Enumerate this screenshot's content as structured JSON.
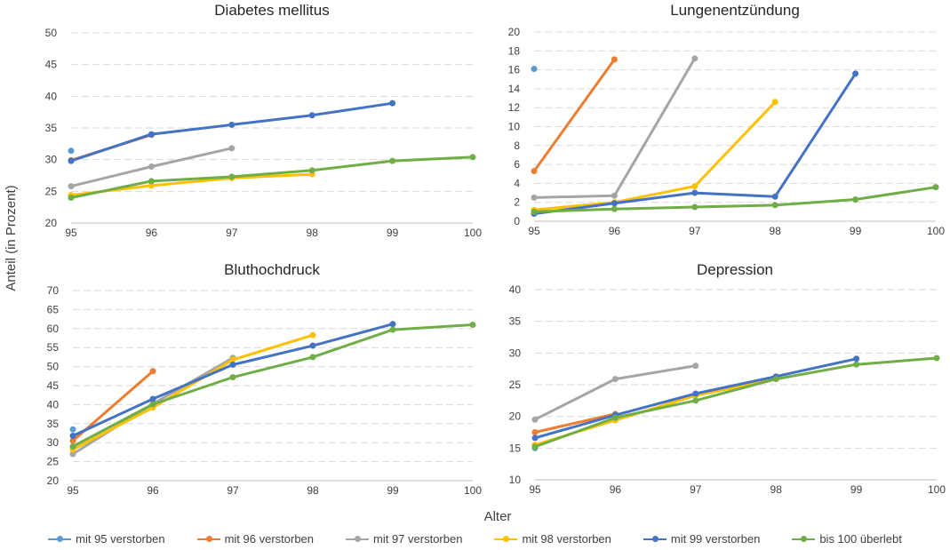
{
  "y_axis_label": "Anteil (in Prozent)",
  "x_axis_label": "Alter",
  "legend": [
    {
      "name": "mit 95 verstorben",
      "color": "#5B9BD5"
    },
    {
      "name": "mit 96 verstorben",
      "color": "#ED7D31"
    },
    {
      "name": "mit 97 verstorben",
      "color": "#A5A5A5"
    },
    {
      "name": "mit 98 verstorben",
      "color": "#FFC000"
    },
    {
      "name": "mit 99 verstorben",
      "color": "#4472C4"
    },
    {
      "name": "bis 100 überlebt",
      "color": "#70AD47"
    }
  ],
  "chart_data": [
    {
      "type": "line",
      "title": "Diabetes mellitus",
      "x": [
        95,
        96,
        97,
        98,
        99,
        100
      ],
      "x_tick_labels": [
        "95",
        "96",
        "97",
        "98",
        "99",
        "100"
      ],
      "ylim": [
        20,
        50
      ],
      "y_ticks": [
        20,
        25,
        30,
        35,
        40,
        45,
        50
      ],
      "grid": true,
      "series": [
        {
          "name": "mit 95 verstorben",
          "values": [
            31.4,
            null,
            null,
            null,
            null,
            null
          ]
        },
        {
          "name": "mit 96 verstorben",
          "values": [
            29.9,
            33.9,
            null,
            null,
            null,
            null
          ]
        },
        {
          "name": "mit 97 verstorben",
          "values": [
            25.8,
            28.9,
            31.8,
            null,
            null,
            null
          ]
        },
        {
          "name": "mit 98 verstorben",
          "values": [
            24.4,
            25.9,
            27.1,
            27.7,
            null,
            null
          ]
        },
        {
          "name": "mit 99 verstorben",
          "values": [
            29.8,
            34.0,
            35.5,
            37.0,
            38.9,
            null
          ]
        },
        {
          "name": "bis 100 überlebt",
          "values": [
            24.0,
            26.6,
            27.3,
            28.3,
            29.8,
            30.4
          ]
        }
      ]
    },
    {
      "type": "line",
      "title": "Lungenentzündung",
      "x": [
        95,
        96,
        97,
        98,
        99,
        100
      ],
      "x_tick_labels": [
        "95",
        "96",
        "97",
        "98",
        "99",
        "100"
      ],
      "ylim": [
        0,
        20
      ],
      "y_ticks": [
        0,
        2,
        4,
        6,
        8,
        10,
        12,
        14,
        16,
        18,
        20
      ],
      "grid": true,
      "series": [
        {
          "name": "mit 95 verstorben",
          "values": [
            16.1,
            null,
            null,
            null,
            null,
            null
          ]
        },
        {
          "name": "mit 96 verstorben",
          "values": [
            5.3,
            17.1,
            null,
            null,
            null,
            null
          ]
        },
        {
          "name": "mit 97 verstorben",
          "values": [
            2.5,
            2.7,
            17.2,
            null,
            null,
            null
          ]
        },
        {
          "name": "mit 98 verstorben",
          "values": [
            1.2,
            2.0,
            3.7,
            12.6,
            null,
            null
          ]
        },
        {
          "name": "mit 99 verstorben",
          "values": [
            0.8,
            1.9,
            3.0,
            2.6,
            15.6,
            null
          ]
        },
        {
          "name": "bis 100 überlebt",
          "values": [
            1.0,
            1.3,
            1.5,
            1.7,
            2.3,
            3.6
          ]
        }
      ]
    },
    {
      "type": "line",
      "title": "Bluthochdruck",
      "x": [
        95,
        96,
        97,
        98,
        99,
        100
      ],
      "x_tick_labels": [
        "95",
        "96",
        "97",
        "98",
        "99",
        "100"
      ],
      "ylim": [
        20,
        70
      ],
      "y_ticks": [
        20,
        25,
        30,
        35,
        40,
        45,
        50,
        55,
        60,
        65,
        70
      ],
      "grid": true,
      "series": [
        {
          "name": "mit 95 verstorben",
          "values": [
            33.5,
            null,
            null,
            null,
            null,
            null
          ]
        },
        {
          "name": "mit 96 verstorben",
          "values": [
            30.5,
            48.8,
            null,
            null,
            null,
            null
          ]
        },
        {
          "name": "mit 97 verstorben",
          "values": [
            27.0,
            40.2,
            52.3,
            null,
            null,
            null
          ]
        },
        {
          "name": "mit 98 verstorben",
          "values": [
            28.2,
            39.2,
            51.8,
            58.3,
            null,
            null
          ]
        },
        {
          "name": "mit 99 verstorben",
          "values": [
            31.8,
            41.5,
            50.5,
            55.5,
            61.2,
            null
          ]
        },
        {
          "name": "bis 100 überlebt",
          "values": [
            29.0,
            40.1,
            47.2,
            52.5,
            59.7,
            61.0
          ]
        }
      ]
    },
    {
      "type": "line",
      "title": "Depression",
      "x": [
        95,
        96,
        97,
        98,
        99,
        100
      ],
      "x_tick_labels": [
        "95",
        "96",
        "97",
        "98",
        "99",
        "100"
      ],
      "ylim": [
        10,
        40
      ],
      "y_ticks": [
        10,
        15,
        20,
        25,
        30,
        35,
        40
      ],
      "grid": true,
      "series": [
        {
          "name": "mit 95 verstorben",
          "values": [
            15.0,
            null,
            null,
            null,
            null,
            null
          ]
        },
        {
          "name": "mit 96 verstorben",
          "values": [
            17.5,
            20.4,
            null,
            null,
            null,
            null
          ]
        },
        {
          "name": "mit 97 verstorben",
          "values": [
            19.5,
            25.9,
            28.0,
            null,
            null,
            null
          ]
        },
        {
          "name": "mit 98 verstorben",
          "values": [
            15.5,
            19.4,
            23.3,
            25.9,
            null,
            null
          ]
        },
        {
          "name": "mit 99 verstorben",
          "values": [
            16.6,
            20.2,
            23.6,
            26.3,
            29.1,
            null
          ]
        },
        {
          "name": "bis 100 überlebt",
          "values": [
            15.2,
            19.8,
            22.5,
            25.9,
            28.2,
            29.2
          ]
        }
      ]
    }
  ]
}
